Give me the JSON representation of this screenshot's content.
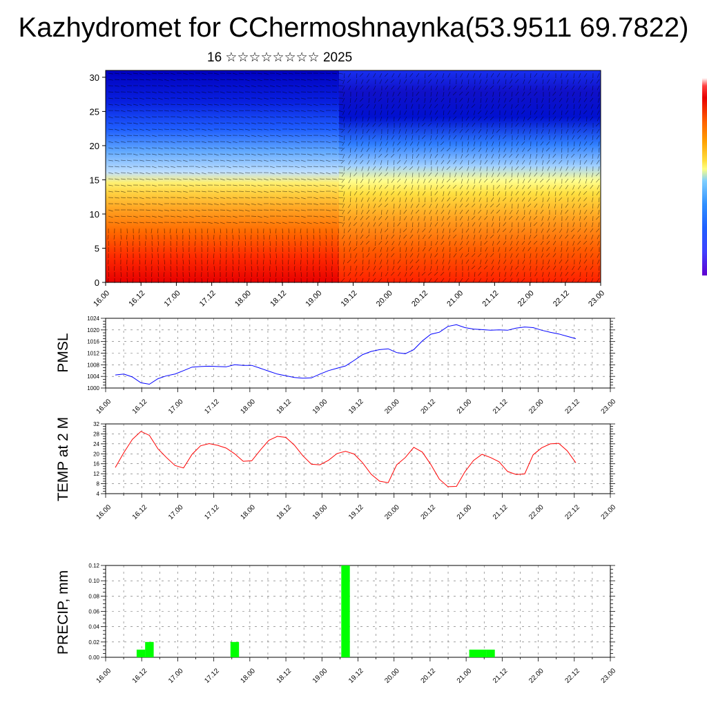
{
  "title": "Kazhydromet for CChermoshnaynka(53.9511 69.7822)",
  "subtitle": "16 ☆☆☆☆☆☆☆☆ 2025",
  "x_tick_labels": [
    "16.00",
    "16.12",
    "17.00",
    "17.12",
    "18.00",
    "18.12",
    "19.00",
    "19.12",
    "20.00",
    "20.12",
    "21.00",
    "21.12",
    "22.00",
    "22.12",
    "23.00"
  ],
  "colors": {
    "pmsl_line": "#0000ff",
    "temp_line": "#ff0000",
    "precip_bar": "#00ff00",
    "grid": "#000000"
  },
  "chart_data": [
    {
      "type": "heatmap",
      "description_of_field": "vertical cross-section with wind barbs",
      "x_labels": [
        "16.00",
        "16.12",
        "17.00",
        "17.12",
        "18.00",
        "18.12",
        "19.00",
        "19.12",
        "20.00",
        "20.12",
        "21.00",
        "21.12",
        "22.00",
        "22.12",
        "23.00"
      ],
      "y_ticks": [
        0,
        5,
        10,
        15,
        20,
        25,
        30
      ],
      "ylim": [
        0,
        31
      ],
      "colormap": [
        "#ff0000",
        "#ff8000",
        "#ffe040",
        "#ffff80",
        "#80c0ff",
        "#2060ff",
        "#0000c0"
      ],
      "regions": [
        {
          "x_range": [
            0,
            6.6
          ],
          "y_range": [
            0,
            8
          ],
          "level": "high"
        },
        {
          "x_range": [
            6.6,
            14
          ],
          "y_range": [
            0,
            7
          ],
          "level": "high"
        },
        {
          "x_range": [
            0,
            6.6
          ],
          "y_range": [
            8,
            15
          ],
          "level": "mid-high"
        },
        {
          "x_range": [
            6.6,
            14
          ],
          "y_range": [
            7,
            13
          ],
          "level": "mid-high"
        },
        {
          "x_range": [
            0,
            6.6
          ],
          "y_range": [
            15,
            25
          ],
          "level": "mid-low"
        },
        {
          "x_range": [
            6.6,
            14
          ],
          "y_range": [
            15,
            22
          ],
          "level": "mid-low"
        },
        {
          "x_range": [
            0,
            14
          ],
          "y_range": [
            25,
            31
          ],
          "level": "low"
        }
      ]
    },
    {
      "type": "line",
      "ylabel": "PMSL",
      "ylim": [
        1000,
        1024
      ],
      "y_ticks": [
        1000,
        1004,
        1008,
        1012,
        1016,
        1020,
        1024
      ],
      "xlim": [
        0,
        14
      ],
      "x": [
        0,
        0.25,
        0.5,
        0.75,
        1,
        1.25,
        1.5,
        1.75,
        2,
        2.25,
        2.5,
        2.75,
        3,
        3.25,
        3.5,
        3.75,
        4,
        4.25,
        4.5,
        4.75,
        5,
        5.25,
        5.5,
        5.75,
        6,
        6.25,
        6.5,
        6.75,
        7,
        7.25,
        7.5,
        7.75,
        8,
        8.25,
        8.5,
        8.75,
        9,
        9.25,
        9.5,
        9.75,
        10,
        10.25,
        10.5,
        10.75,
        11,
        11.25,
        11.5,
        11.75,
        12,
        12.25,
        12.5,
        12.75,
        13,
        13.25,
        13.5
      ],
      "values": [
        1004.5,
        1004.8,
        1003.8,
        1001.8,
        1001.3,
        1003.2,
        1004.2,
        1004.8,
        1006,
        1007.2,
        1007.4,
        1007.5,
        1007.4,
        1007.3,
        1008,
        1007.8,
        1007.8,
        1006.8,
        1005.8,
        1004.8,
        1004.2,
        1003.6,
        1003.4,
        1003.5,
        1004.8,
        1006,
        1006.8,
        1007.6,
        1009.5,
        1011.5,
        1012.6,
        1013.2,
        1013.5,
        1012.2,
        1011.8,
        1013.2,
        1016.2,
        1018.5,
        1019.2,
        1021.2,
        1021.8,
        1020.8,
        1020.3,
        1020.1,
        1019.9,
        1020,
        1019.9,
        1020.6,
        1021,
        1020.8,
        1019.9,
        1019.2,
        1018.6,
        1017.8,
        1017
      ]
    },
    {
      "type": "line",
      "ylabel": "TEMP at 2 M",
      "ylim": [
        4,
        32
      ],
      "y_ticks": [
        4,
        8,
        12,
        16,
        20,
        24,
        28,
        32
      ],
      "xlim": [
        0,
        14
      ],
      "x": [
        0,
        0.25,
        0.5,
        0.75,
        1,
        1.25,
        1.5,
        1.75,
        2,
        2.25,
        2.5,
        2.75,
        3,
        3.25,
        3.5,
        3.75,
        4,
        4.25,
        4.5,
        4.75,
        5,
        5.25,
        5.5,
        5.75,
        6,
        6.25,
        6.5,
        6.75,
        7,
        7.25,
        7.5,
        7.75,
        8,
        8.25,
        8.5,
        8.75,
        9,
        9.25,
        9.5,
        9.75,
        10,
        10.25,
        10.5,
        10.75,
        11,
        11.25,
        11.5,
        11.75,
        12,
        12.25,
        12.5,
        12.75,
        13,
        13.25,
        13.5
      ],
      "values": [
        14.5,
        20.5,
        25.8,
        29,
        27.4,
        22,
        18.5,
        15.3,
        14.3,
        19.8,
        23.2,
        24.1,
        23.4,
        22.3,
        20,
        17,
        17.2,
        21.5,
        25.4,
        27,
        26.6,
        23.5,
        19.2,
        15.8,
        15.6,
        17.4,
        20.1,
        21,
        19.9,
        16.4,
        11.8,
        9,
        8.4,
        15.6,
        18.5,
        22.6,
        20.7,
        15.7,
        9.8,
        6.8,
        6.9,
        12.8,
        17.3,
        19.8,
        18.5,
        16.8,
        12.9,
        11.7,
        11.9,
        19.6,
        22.4,
        24,
        24.2,
        21.2,
        16.4
      ]
    },
    {
      "type": "bar",
      "ylabel": "PRECIP, mm",
      "ylim": [
        0,
        0.12
      ],
      "y_ticks": [
        "0.00",
        "0.02",
        "0.04",
        "0.06",
        "0.08",
        "0.10",
        "0.12"
      ],
      "xlim": [
        0,
        14
      ],
      "bar_width": 0.25,
      "bars": [
        {
          "x": 0.75,
          "value": 0.01
        },
        {
          "x": 1.0,
          "value": 0.02
        },
        {
          "x": 3.5,
          "value": 0.02
        },
        {
          "x": 6.75,
          "value": 0.12
        },
        {
          "x": 10.5,
          "value": 0.01
        },
        {
          "x": 10.75,
          "value": 0.01
        },
        {
          "x": 11.0,
          "value": 0.01
        }
      ]
    }
  ]
}
